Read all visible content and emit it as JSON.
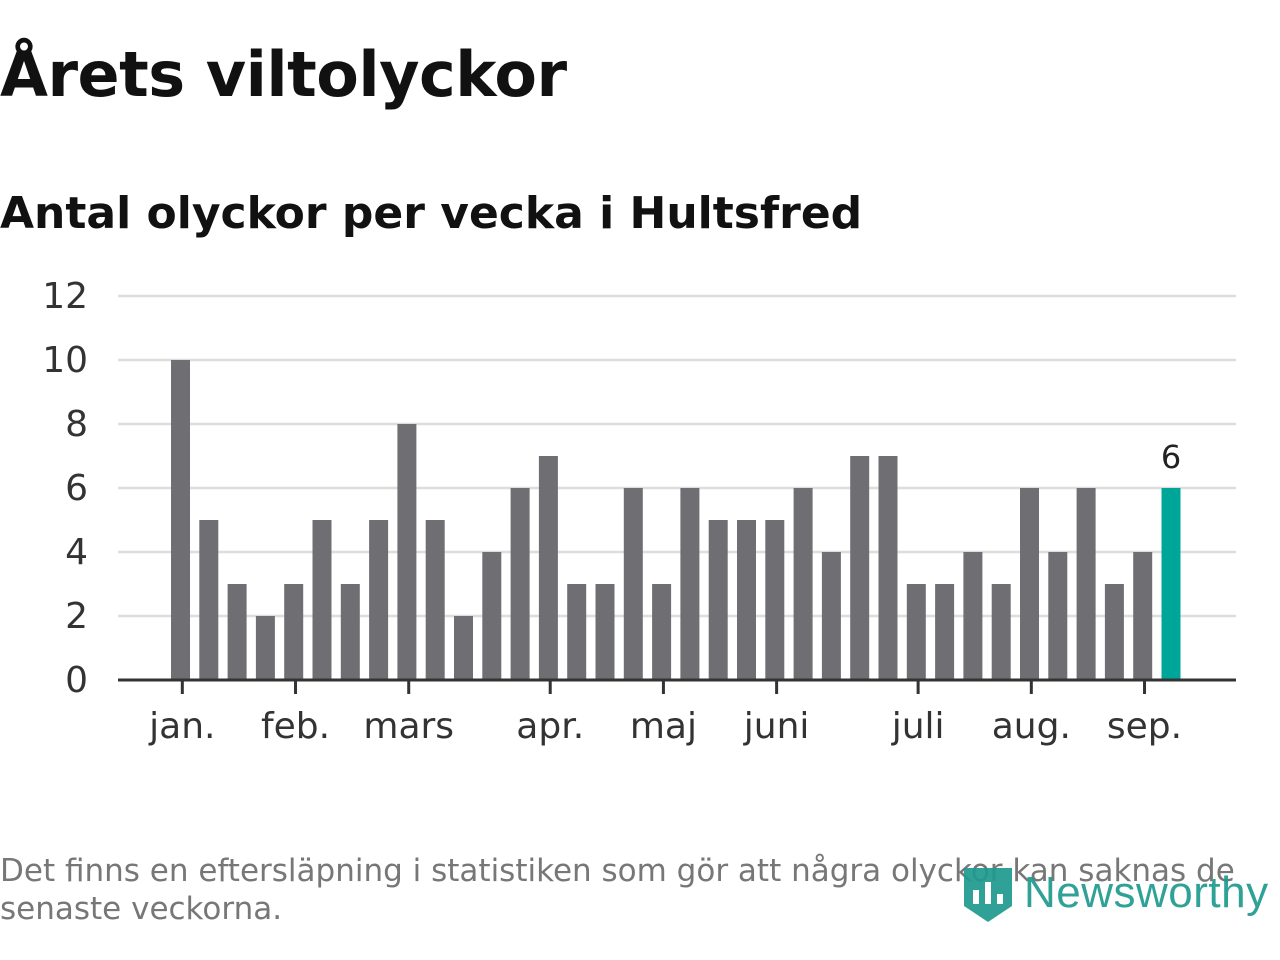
{
  "title": "Årets viltolyckor",
  "subtitle": "Antal olyckor per vecka i Hultsfred",
  "footnote": "Det finns en eftersläpning i statistiken som gör att några olyckor kan saknas de senaste veckorna.",
  "brand": "Newsworthy",
  "colors": {
    "bar": "#6f6e73",
    "highlight": "#00a59a",
    "grid": "#dddddd",
    "axis": "#333333",
    "brand": "#1f9a8e"
  },
  "chart_data": {
    "type": "bar",
    "values": [
      10,
      5,
      3,
      2,
      3,
      5,
      3,
      5,
      8,
      5,
      2,
      4,
      6,
      7,
      3,
      3,
      6,
      3,
      6,
      5,
      5,
      5,
      6,
      4,
      7,
      7,
      3,
      3,
      4,
      3,
      6,
      4,
      6,
      3,
      4,
      6
    ],
    "highlight_last": true,
    "last_value_label": "6",
    "yticks": [
      0,
      2,
      4,
      6,
      8,
      10,
      12
    ],
    "ylim": [
      0,
      12
    ],
    "month_labels": [
      {
        "label": "jan.",
        "week_index": 0.4
      },
      {
        "label": "feb.",
        "week_index": 4.4
      },
      {
        "label": "mars",
        "week_index": 8.4
      },
      {
        "label": "apr.",
        "week_index": 13.4
      },
      {
        "label": "maj",
        "week_index": 17.4
      },
      {
        "label": "juni",
        "week_index": 21.4
      },
      {
        "label": "juli",
        "week_index": 26.4
      },
      {
        "label": "aug.",
        "week_index": 30.4
      },
      {
        "label": "sep.",
        "week_index": 34.4
      }
    ],
    "grid": true,
    "xlabel": "",
    "ylabel": ""
  }
}
